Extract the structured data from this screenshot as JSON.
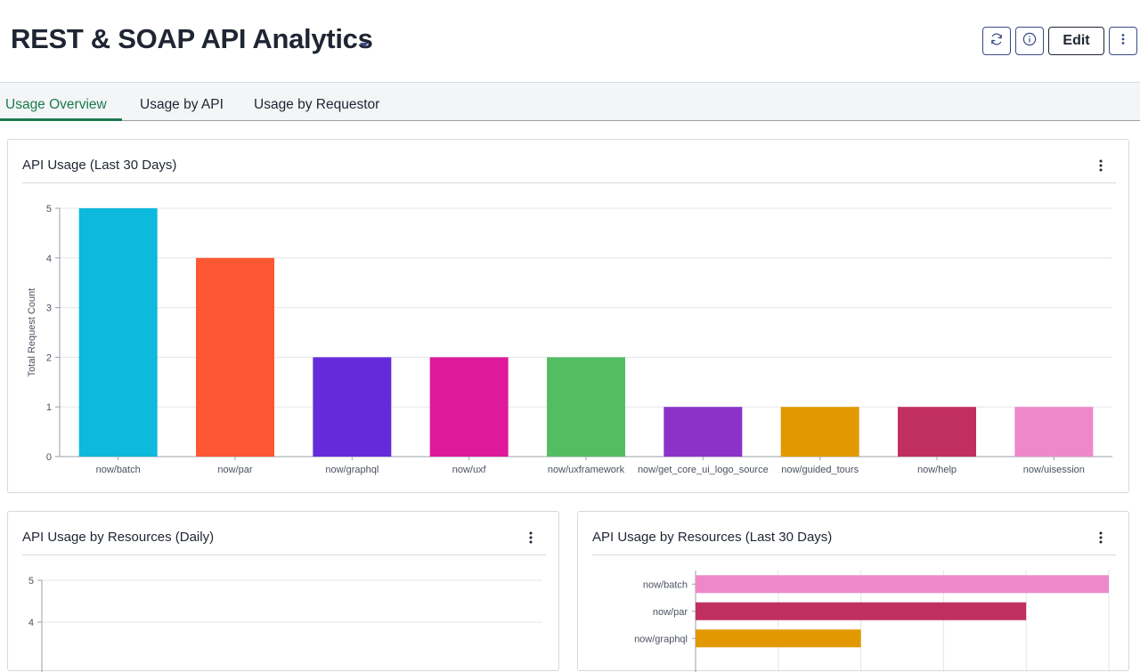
{
  "header": {
    "title": "REST & SOAP API Analytics",
    "edit_label": "Edit"
  },
  "tabs": [
    {
      "label": "Usage Overview",
      "active": true
    },
    {
      "label": "Usage by API",
      "active": false
    },
    {
      "label": "Usage by Requestor",
      "active": false
    }
  ],
  "colors": {
    "accent_green": "#1b7a4e",
    "button_border": "#3a4a8a"
  },
  "icons": [
    "caret-down-icon",
    "refresh-icon",
    "info-icon",
    "more-vertical-icon"
  ],
  "cards": {
    "usage_30": {
      "title": "API Usage (Last 30 Days)"
    },
    "usage_daily": {
      "title": "API Usage by Resources (Daily)"
    },
    "usage_resources": {
      "title": "API Usage by Resources (Last 30 Days)"
    }
  },
  "chart_data": [
    {
      "type": "bar",
      "title": "API Usage (Last 30 Days)",
      "ylabel": "Total Request Count",
      "xlabel": "",
      "ylim": [
        0,
        5
      ],
      "yticks": [
        0,
        1,
        2,
        3,
        4,
        5
      ],
      "grid": true,
      "categories": [
        "now/batch",
        "now/par",
        "now/graphql",
        "now/uxf",
        "now/uxframework",
        "now/get_core_ui_logo_source",
        "now/guided_tours",
        "now/help",
        "now/uisession"
      ],
      "values": [
        5,
        4,
        2,
        2,
        2,
        1,
        1,
        1,
        1
      ],
      "colors": [
        "#0db9dd",
        "#fe5733",
        "#652bdb",
        "#de1a9b",
        "#53bd63",
        "#8b33c8",
        "#e29800",
        "#c12f61",
        "#ee88cb"
      ]
    },
    {
      "type": "line",
      "title": "API Usage by Resources (Daily)",
      "yticks_visible": [
        5,
        4
      ],
      "grid": true
    },
    {
      "type": "bar",
      "orientation": "horizontal",
      "title": "API Usage by Resources (Last 30 Days)",
      "categories_visible": [
        "now/batch",
        "now/par",
        "now/graphql"
      ],
      "values": [
        5,
        4,
        2
      ],
      "xlim": [
        0,
        5
      ],
      "colors": [
        "#ee88cb",
        "#c12f61",
        "#e29800"
      ],
      "grid": true
    }
  ]
}
